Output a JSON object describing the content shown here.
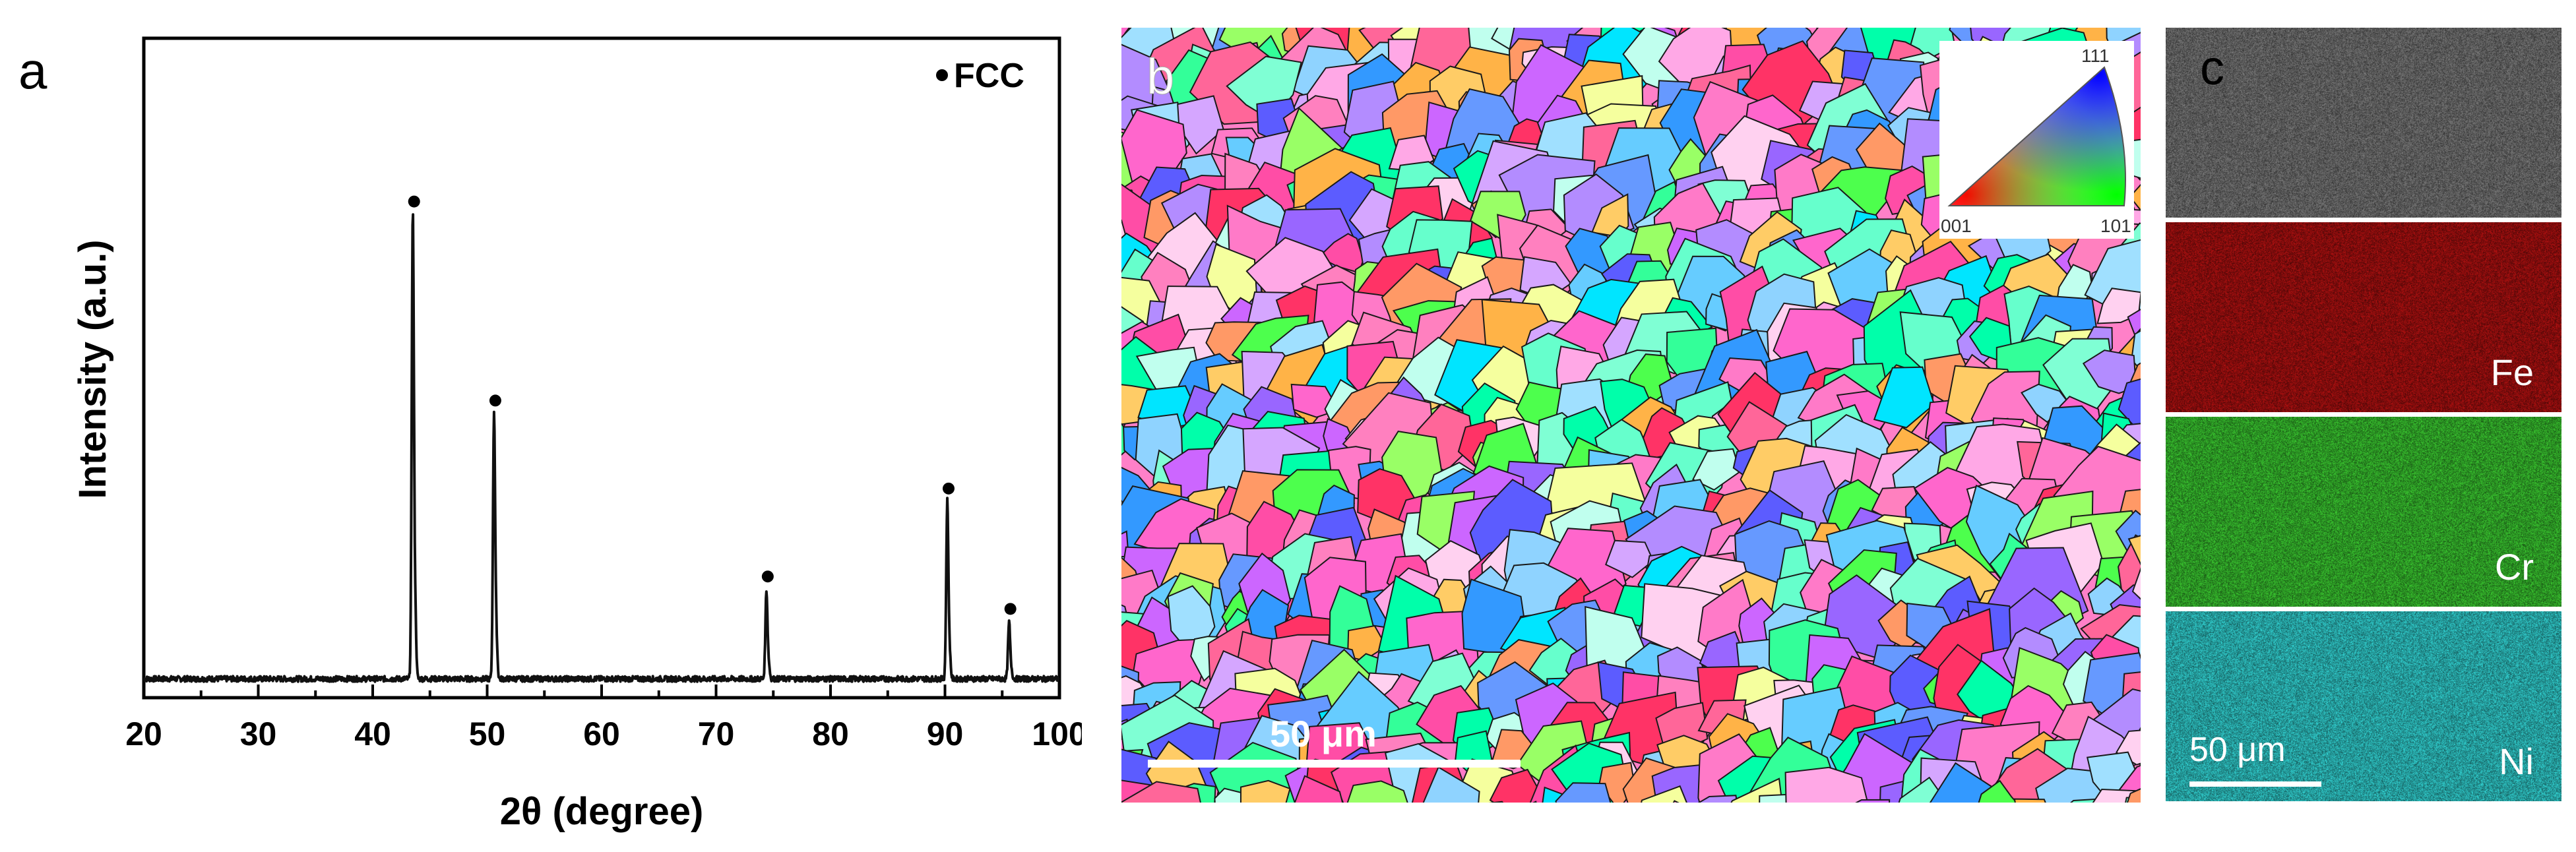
{
  "panel_labels": {
    "a": "a",
    "b": "b",
    "c": "c"
  },
  "chart_data": {
    "type": "line",
    "title": "",
    "xlabel": "2θ (degree)",
    "ylabel": "Intensity (a.u.)",
    "xlim": [
      20,
      100
    ],
    "x_ticks": [
      20,
      30,
      40,
      50,
      60,
      70,
      80,
      90,
      100
    ],
    "y_ticks_shown": false,
    "grid": false,
    "legend": {
      "entries": [
        "FCC"
      ],
      "placement": "top-right",
      "marker": "dot"
    },
    "baseline_intensity": 1.5,
    "peaks": [
      {
        "x": 43.5,
        "intensity": 100
      },
      {
        "x": 50.6,
        "intensity": 57
      },
      {
        "x": 74.4,
        "intensity": 19
      },
      {
        "x": 90.2,
        "intensity": 38
      },
      {
        "x": 95.6,
        "intensity": 12
      }
    ],
    "peak_markers": [
      {
        "x": 43.5,
        "phase": "FCC",
        "marker": "dot"
      },
      {
        "x": 50.6,
        "phase": "FCC",
        "marker": "dot"
      },
      {
        "x": 74.4,
        "phase": "FCC",
        "marker": "dot"
      },
      {
        "x": 90.2,
        "phase": "FCC",
        "marker": "dot"
      },
      {
        "x": 95.6,
        "phase": "FCC",
        "marker": "dot"
      }
    ]
  },
  "ebsd_map": {
    "scale_bar": "50 μm",
    "ipf_legend": {
      "corner_labels": [
        "111",
        "001",
        "101"
      ],
      "colors": [
        "#0000ff",
        "#ff0000",
        "#00ff00"
      ]
    }
  },
  "eds_maps": {
    "scale_bar": "50 μm",
    "maps": [
      {
        "element": "",
        "color": "#5f5f5f"
      },
      {
        "element": "Fe",
        "color": "#8a0d0d"
      },
      {
        "element": "Cr",
        "color": "#2e9e26"
      },
      {
        "element": "Ni",
        "color": "#27a6a6"
      }
    ]
  }
}
